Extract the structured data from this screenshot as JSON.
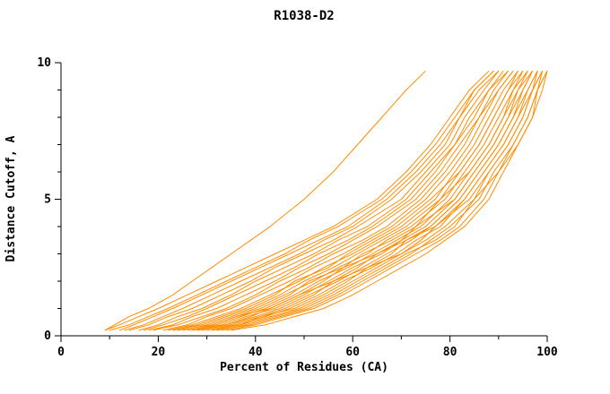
{
  "chart_data": {
    "type": "line",
    "title": "R1038-D2",
    "xlabel": "Percent of Residues (CA)",
    "ylabel": "Distance Cutoff, A",
    "xlim": [
      0,
      100
    ],
    "ylim": [
      0,
      10
    ],
    "x_major_ticks": [
      0,
      20,
      40,
      60,
      80,
      100
    ],
    "x_minor_ticks": [
      10,
      30,
      50,
      70,
      90
    ],
    "y_major_ticks": [
      0,
      5,
      10
    ],
    "y_minor_ticks": [
      1,
      2,
      3,
      4,
      6,
      7,
      8,
      9
    ],
    "legend": "none",
    "grid": false,
    "line_color": "#ff8c00",
    "axis_color": "#000000",
    "distance_cutoffs": [
      0.2,
      0.4,
      0.7,
      1.0,
      1.5,
      2.0,
      2.5,
      3.0,
      3.5,
      4.0,
      5.0,
      6.0,
      7.0,
      8.0,
      9.0,
      9.7
    ],
    "series_percent_values": [
      [
        9,
        11,
        14,
        18,
        23,
        27,
        31,
        35,
        39,
        43,
        50,
        56,
        61,
        66,
        71,
        75
      ],
      [
        9,
        12,
        16,
        20,
        26,
        32,
        38,
        44,
        50,
        56,
        65,
        71,
        76,
        80,
        84,
        88
      ],
      [
        10,
        14,
        18,
        22,
        28,
        34,
        40,
        46,
        51,
        57,
        66,
        72,
        77,
        81,
        85,
        89
      ],
      [
        12,
        15,
        19,
        23,
        29,
        35,
        41,
        47,
        53,
        59,
        67,
        73,
        78,
        82,
        85,
        89
      ],
      [
        13,
        17,
        21,
        25,
        31,
        37,
        43,
        49,
        54,
        60,
        68,
        74,
        79,
        82,
        86,
        90
      ],
      [
        14,
        18,
        22,
        27,
        33,
        39,
        44,
        50,
        56,
        61,
        70,
        75,
        80,
        83,
        87,
        90
      ],
      [
        16,
        20,
        24,
        29,
        35,
        40,
        46,
        52,
        57,
        63,
        71,
        76,
        81,
        84,
        88,
        91
      ],
      [
        17,
        21,
        26,
        30,
        36,
        42,
        48,
        53,
        59,
        64,
        72,
        77,
        81,
        85,
        88,
        92
      ],
      [
        18,
        23,
        27,
        32,
        38,
        44,
        49,
        55,
        60,
        65,
        73,
        78,
        82,
        86,
        89,
        92
      ],
      [
        19,
        24,
        29,
        34,
        40,
        45,
        51,
        56,
        62,
        67,
        74,
        79,
        83,
        86,
        90,
        93
      ],
      [
        21,
        26,
        30,
        35,
        41,
        47,
        52,
        58,
        63,
        68,
        75,
        80,
        84,
        87,
        90,
        93
      ],
      [
        22,
        27,
        32,
        37,
        43,
        49,
        54,
        60,
        65,
        70,
        77,
        81,
        85,
        88,
        91,
        94
      ],
      [
        23,
        28,
        33,
        38,
        44,
        48,
        55,
        59,
        64,
        69,
        76,
        82,
        86,
        89,
        92,
        94
      ],
      [
        23,
        29,
        34,
        39,
        45,
        50,
        56,
        61,
        66,
        71,
        78,
        82,
        86,
        89,
        92,
        95
      ],
      [
        25,
        30,
        35,
        40,
        46,
        52,
        57,
        63,
        67,
        72,
        79,
        83,
        87,
        90,
        93,
        95
      ],
      [
        24,
        31,
        36,
        41,
        47,
        51,
        58,
        62,
        68,
        73,
        78,
        84,
        88,
        91,
        93,
        96
      ],
      [
        26,
        32,
        37,
        42,
        48,
        53,
        59,
        64,
        69,
        74,
        80,
        84,
        88,
        91,
        94,
        96
      ],
      [
        27,
        31,
        36,
        43,
        49,
        54,
        58,
        65,
        70,
        73,
        81,
        85,
        89,
        92,
        94,
        97
      ],
      [
        27,
        33,
        38,
        44,
        50,
        55,
        60,
        66,
        70,
        75,
        81,
        85,
        89,
        92,
        95,
        97
      ],
      [
        28,
        34,
        39,
        43,
        49,
        56,
        61,
        65,
        71,
        76,
        82,
        86,
        90,
        93,
        95,
        97
      ],
      [
        29,
        34,
        40,
        45,
        51,
        57,
        62,
        67,
        72,
        76,
        82,
        86,
        90,
        93,
        96,
        98
      ],
      [
        28,
        35,
        41,
        46,
        52,
        56,
        63,
        68,
        71,
        77,
        83,
        87,
        91,
        94,
        96,
        98
      ],
      [
        30,
        36,
        42,
        47,
        53,
        58,
        64,
        69,
        73,
        78,
        83,
        87,
        91,
        94,
        97,
        98
      ],
      [
        31,
        37,
        41,
        48,
        54,
        59,
        63,
        70,
        74,
        77,
        84,
        88,
        92,
        95,
        97,
        99
      ],
      [
        31,
        37,
        43,
        49,
        55,
        60,
        65,
        70,
        75,
        79,
        85,
        88,
        92,
        95,
        97,
        99
      ],
      [
        32,
        39,
        45,
        51,
        57,
        62,
        67,
        72,
        76,
        80,
        86,
        89,
        93,
        96,
        98,
        100
      ],
      [
        33,
        38,
        44,
        50,
        56,
        61,
        66,
        71,
        77,
        81,
        85,
        90,
        93,
        96,
        98,
        99
      ],
      [
        34,
        40,
        46,
        52,
        58,
        63,
        68,
        73,
        78,
        82,
        87,
        90,
        94,
        97,
        98,
        100
      ],
      [
        35,
        42,
        48,
        54,
        60,
        65,
        70,
        75,
        79,
        83,
        88,
        91,
        94,
        97,
        99,
        100
      ]
    ]
  }
}
